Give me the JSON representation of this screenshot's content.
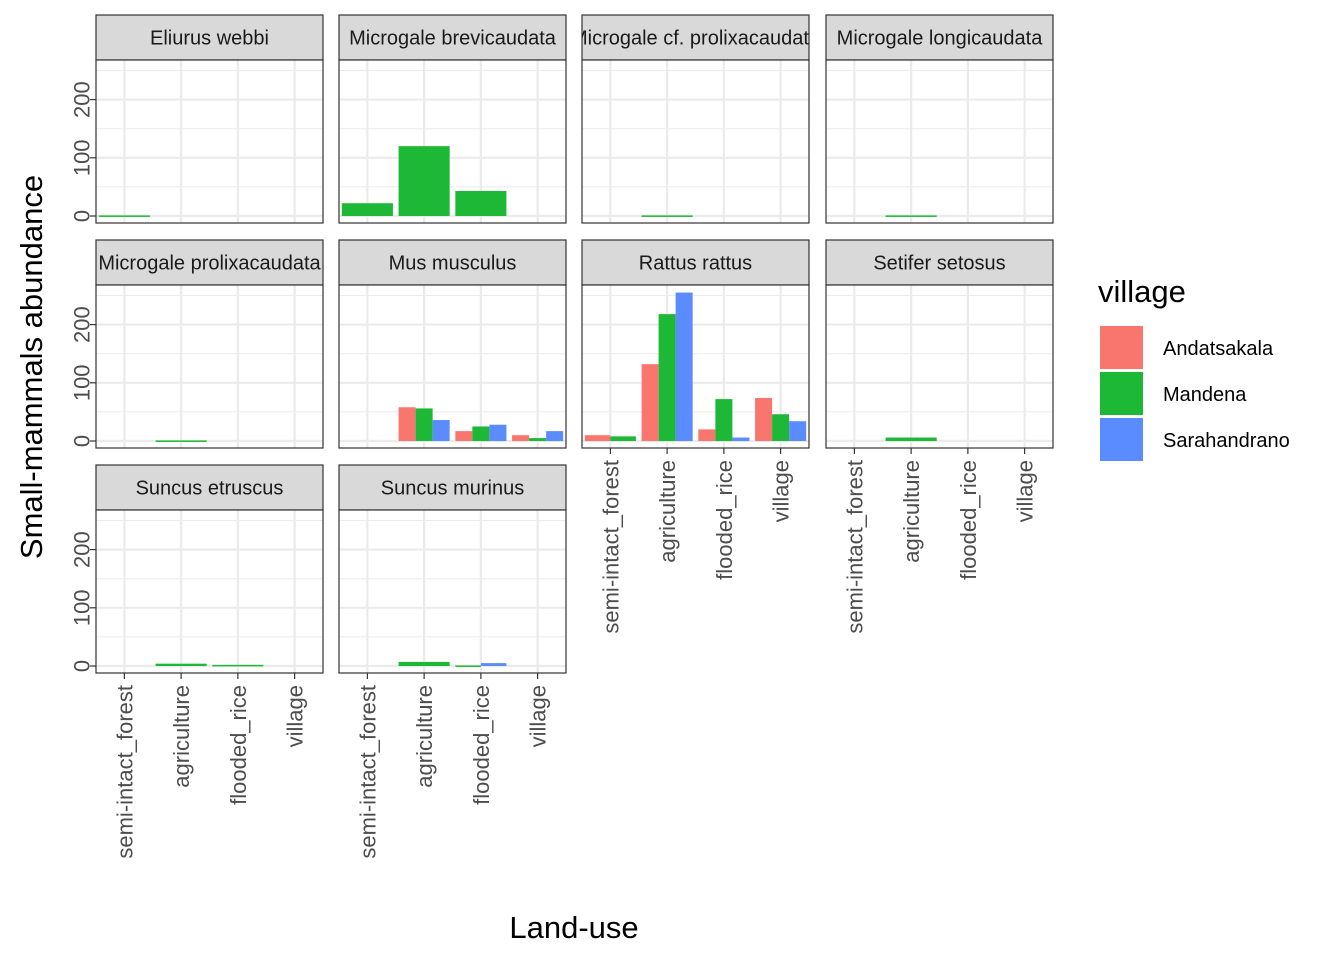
{
  "chart_data": {
    "type": "bar",
    "layout": "facet_wrap",
    "xlabel": "Land-use",
    "ylabel": "Small-mammals abundance",
    "categories": [
      "semi-intact_forest",
      "agriculture",
      "flooded_rice",
      "village"
    ],
    "ylim": [
      -12,
      268
    ],
    "yticks": [
      0,
      100,
      200
    ],
    "grid": true,
    "legend": {
      "title": "village",
      "position": "right",
      "entries": [
        {
          "name": "Andatsakala",
          "color": "#F8766D"
        },
        {
          "name": "Mandena",
          "color": "#1DB835"
        },
        {
          "name": "Sarahandrano",
          "color": "#5A8BFF"
        }
      ]
    },
    "facets": [
      {
        "title": "Eliurus webbi",
        "values": {
          "Mandena": [
            1,
            0,
            0,
            0
          ]
        }
      },
      {
        "title": "Microgale brevicaudata",
        "values": {
          "Mandena": [
            22,
            120,
            43,
            0
          ]
        }
      },
      {
        "title": "Microgale cf. prolixacaudata",
        "values": {
          "Mandena": [
            0,
            1,
            0,
            0
          ]
        }
      },
      {
        "title": "Microgale longicaudata",
        "values": {
          "Mandena": [
            0,
            1,
            0,
            0
          ]
        }
      },
      {
        "title": "Microgale prolixacaudata",
        "values": {
          "Mandena": [
            0,
            1,
            0,
            0
          ]
        }
      },
      {
        "title": "Mus musculus",
        "values": {
          "Andatsakala": [
            0,
            58,
            17,
            10
          ],
          "Mandena": [
            0,
            56,
            25,
            5
          ],
          "Sarahandrano": [
            0,
            36,
            28,
            17
          ]
        }
      },
      {
        "title": "Rattus rattus",
        "values": {
          "Andatsakala": [
            10,
            132,
            20,
            74
          ],
          "Mandena": [
            8,
            218,
            72,
            46
          ],
          "Sarahandrano": [
            0,
            255,
            6,
            34
          ]
        }
      },
      {
        "title": "Setifer setosus",
        "values": {
          "Mandena": [
            0,
            6,
            0,
            0
          ]
        }
      },
      {
        "title": "Suncus etruscus",
        "values": {
          "Mandena": [
            0,
            4,
            2,
            0
          ]
        }
      },
      {
        "title": "Suncus murinus",
        "values": {
          "Mandena": [
            0,
            7,
            1,
            0
          ],
          "Sarahandrano": [
            0,
            0,
            5,
            0
          ]
        }
      }
    ]
  }
}
